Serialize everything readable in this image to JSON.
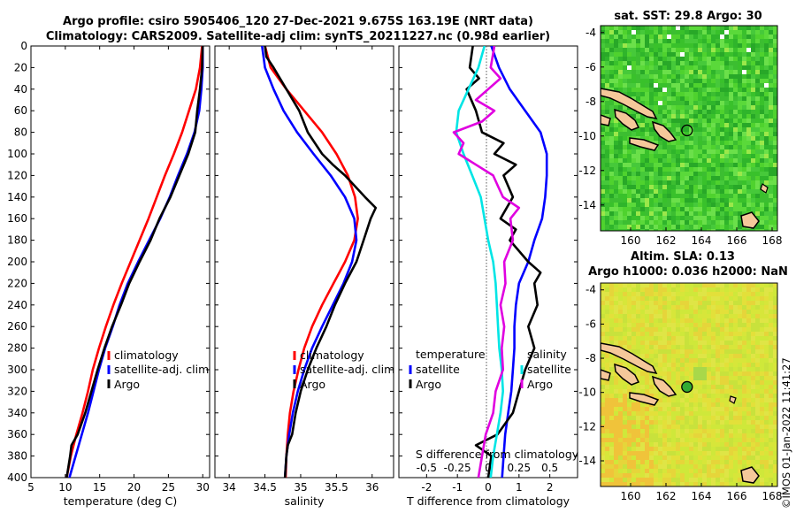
{
  "title_line1": "Argo profile: csiro 5905406_120 27-Dec-2021 9.675S 163.19E (NRT data)",
  "title_line2": "Climatology: CARS2009. Satellite-adj clim: synTS_20211227.nc (0.98d earlier)",
  "footer_vertical": "©IMOS 01-Jan-2022 11:41:27",
  "colors": {
    "climatology": "#ff0000",
    "satellite": "#0000ff",
    "argo": "#000000",
    "temp_diff": "#00e5e5",
    "sal_diff": "#e000e0"
  },
  "chart_data": [
    {
      "type": "line",
      "name": "temperature-profile",
      "xlabel": "temperature (deg C)",
      "ylabel": "",
      "xlim": [
        5,
        31
      ],
      "ylim": [
        400,
        0
      ],
      "xticks": [
        5,
        10,
        15,
        20,
        25,
        30
      ],
      "yticks": [
        0,
        20,
        40,
        60,
        80,
        100,
        120,
        140,
        160,
        180,
        200,
        220,
        240,
        260,
        280,
        300,
        320,
        340,
        360,
        380,
        400
      ],
      "legend": [
        "climatology",
        "satellite-adj. clim",
        "Argo"
      ],
      "series": [
        {
          "name": "climatology",
          "color": "#ff0000",
          "depth": [
            0,
            20,
            40,
            60,
            80,
            100,
            120,
            140,
            160,
            180,
            200,
            220,
            240,
            260,
            280,
            300,
            320,
            340,
            360,
            380,
            400
          ],
          "values": [
            29.9,
            29.6,
            29.0,
            28.0,
            27.0,
            25.8,
            24.5,
            23.3,
            22.1,
            20.8,
            19.5,
            18.2,
            17.0,
            15.9,
            14.9,
            14.0,
            13.3,
            12.5,
            11.6,
            10.8,
            10.2
          ]
        },
        {
          "name": "satellite-adj. clim",
          "color": "#0000ff",
          "depth": [
            0,
            20,
            40,
            60,
            80,
            100,
            120,
            140,
            160,
            180,
            200,
            220,
            240,
            260,
            280,
            300,
            320,
            340,
            360,
            380,
            400
          ],
          "values": [
            30.0,
            30.0,
            29.8,
            29.5,
            28.8,
            27.7,
            26.4,
            25.2,
            23.8,
            22.2,
            20.6,
            19.1,
            17.9,
            16.9,
            15.8,
            14.9,
            14.1,
            13.3,
            12.4,
            11.5,
            10.6
          ]
        },
        {
          "name": "Argo",
          "color": "#000000",
          "depth": [
            0,
            20,
            40,
            60,
            80,
            100,
            120,
            140,
            150,
            160,
            180,
            200,
            220,
            240,
            260,
            280,
            300,
            320,
            340,
            360,
            370,
            380,
            400
          ],
          "values": [
            30.0,
            29.9,
            29.6,
            29.2,
            28.9,
            27.9,
            26.6,
            25.3,
            24.5,
            23.7,
            22.4,
            20.8,
            19.3,
            18.1,
            16.8,
            15.7,
            14.7,
            13.8,
            12.9,
            11.8,
            10.9,
            10.7,
            10.2
          ]
        }
      ]
    },
    {
      "type": "line",
      "name": "salinity-profile",
      "xlabel": "salinity",
      "ylabel": "",
      "xlim": [
        33.8,
        36.3
      ],
      "ylim": [
        400,
        0
      ],
      "xticks": [
        34,
        34.5,
        35,
        35.5,
        36
      ],
      "legend": [
        "climatology",
        "satellite-adj. clim",
        "Argo"
      ],
      "series": [
        {
          "name": "climatology",
          "color": "#ff0000",
          "depth": [
            0,
            20,
            40,
            60,
            80,
            100,
            120,
            140,
            160,
            180,
            200,
            220,
            240,
            260,
            280,
            300,
            320,
            340,
            360,
            380,
            400
          ],
          "values": [
            34.5,
            34.58,
            34.8,
            35.05,
            35.3,
            35.5,
            35.66,
            35.76,
            35.8,
            35.75,
            35.62,
            35.46,
            35.3,
            35.16,
            35.05,
            34.97,
            34.9,
            34.85,
            34.82,
            34.8,
            34.79
          ]
        },
        {
          "name": "satellite-adj. clim",
          "color": "#0000ff",
          "depth": [
            0,
            20,
            40,
            60,
            80,
            100,
            120,
            140,
            160,
            180,
            200,
            220,
            240,
            260,
            280,
            300,
            320,
            340,
            360,
            380,
            400
          ],
          "values": [
            34.46,
            34.5,
            34.62,
            34.76,
            34.95,
            35.18,
            35.42,
            35.62,
            35.75,
            35.78,
            35.72,
            35.6,
            35.45,
            35.3,
            35.16,
            35.05,
            34.96,
            34.89,
            34.84,
            34.8,
            34.78
          ]
        },
        {
          "name": "Argo",
          "color": "#000000",
          "depth": [
            0,
            10,
            20,
            40,
            60,
            80,
            100,
            110,
            120,
            140,
            150,
            160,
            180,
            200,
            220,
            240,
            260,
            280,
            300,
            320,
            340,
            360,
            370,
            380,
            400
          ],
          "values": [
            34.5,
            34.52,
            34.62,
            34.8,
            34.98,
            35.1,
            35.3,
            35.45,
            35.62,
            35.9,
            36.05,
            35.98,
            35.88,
            35.78,
            35.62,
            35.48,
            35.36,
            35.22,
            35.1,
            35.0,
            34.93,
            34.88,
            34.82,
            34.8,
            34.78
          ]
        }
      ]
    },
    {
      "type": "line",
      "name": "difference-profile",
      "xlabel": "T difference from climatology",
      "xlabel_top": "S difference from climatology",
      "xlim": [
        -2.9,
        2.9
      ],
      "ylim": [
        400,
        0
      ],
      "xticks": [
        -2,
        -1,
        0,
        1,
        2
      ],
      "s_tick_labels": [
        "-0.5",
        "-0.25",
        "0",
        "0.25",
        "0.5"
      ],
      "legend_left_title": "temperature",
      "legend_right_title": "salinity",
      "legend": [
        "satellite",
        "Argo"
      ],
      "series": [
        {
          "name": "T satellite",
          "color": "#0000ff",
          "depth": [
            0,
            20,
            40,
            60,
            80,
            100,
            120,
            140,
            160,
            180,
            200,
            220,
            240,
            260,
            280,
            300,
            320,
            340,
            360,
            380,
            400
          ],
          "values": [
            0.1,
            0.35,
            0.7,
            1.2,
            1.7,
            1.9,
            1.9,
            1.85,
            1.75,
            1.5,
            1.3,
            1.0,
            0.9,
            0.85,
            0.85,
            0.8,
            0.75,
            0.65,
            0.55,
            0.5,
            0.45
          ]
        },
        {
          "name": "T Argo",
          "color": "#000000",
          "depth": [
            0,
            20,
            30,
            40,
            60,
            80,
            90,
            100,
            110,
            120,
            140,
            150,
            160,
            170,
            180,
            200,
            210,
            220,
            240,
            260,
            280,
            300,
            320,
            340,
            360,
            370,
            380,
            400
          ],
          "values": [
            -0.5,
            -0.6,
            -0.3,
            -0.7,
            -0.4,
            -0.2,
            0.5,
            0.2,
            0.9,
            0.5,
            0.8,
            0.6,
            0.4,
            0.9,
            0.7,
            1.3,
            1.7,
            1.5,
            1.6,
            1.3,
            1.5,
            1.2,
            1.0,
            0.8,
            0.3,
            -0.4,
            0.1,
            0.0
          ]
        },
        {
          "name": "S satellite",
          "color": "#00e5e5",
          "depth": [
            0,
            20,
            40,
            60,
            80,
            100,
            120,
            140,
            160,
            180,
            200,
            220,
            240,
            260,
            280,
            300,
            320,
            340,
            360,
            380,
            400
          ],
          "values": [
            -0.03,
            -0.08,
            -0.16,
            -0.24,
            -0.26,
            -0.2,
            -0.13,
            -0.06,
            -0.03,
            0.0,
            0.04,
            0.06,
            0.07,
            0.08,
            0.09,
            0.11,
            0.12,
            0.1,
            0.07,
            0.04,
            0.02
          ]
        },
        {
          "name": "S Argo",
          "color": "#e000e0",
          "depth": [
            0,
            20,
            30,
            40,
            50,
            60,
            70,
            80,
            90,
            100,
            110,
            120,
            130,
            140,
            150,
            160,
            180,
            200,
            220,
            240,
            260,
            280,
            300,
            320,
            340,
            360,
            380,
            400
          ],
          "values": [
            0.05,
            0.02,
            0.1,
            0.0,
            -0.1,
            0.05,
            -0.05,
            -0.28,
            -0.2,
            -0.24,
            -0.1,
            0.04,
            0.08,
            0.12,
            0.25,
            0.18,
            0.2,
            0.13,
            0.14,
            0.1,
            0.13,
            0.11,
            0.12,
            0.06,
            0.04,
            -0.02,
            -0.05,
            -0.08
          ]
        }
      ]
    },
    {
      "type": "heatmap",
      "name": "sst-map",
      "title": "sat. SST: 29.8 Argo: 30",
      "xlim": [
        158.3,
        168.3
      ],
      "ylim": [
        -15.5,
        -3.6
      ],
      "xticks": [
        160,
        162,
        164,
        166,
        168
      ],
      "yticks": [
        -4,
        -6,
        -8,
        -10,
        -12,
        -14
      ],
      "profile_location": {
        "lon": 163.19,
        "lat": -9.675
      }
    },
    {
      "type": "heatmap",
      "name": "sla-map",
      "title_line1": "Altim. SLA: 0.13",
      "title_line2": "Argo h1000: 0.036 h2000: NaN",
      "xlim": [
        158.3,
        168.3
      ],
      "ylim": [
        -15.5,
        -3.6
      ],
      "xticks": [
        160,
        162,
        164,
        166,
        168
      ],
      "yticks": [
        -4,
        -6,
        -8,
        -10,
        -12,
        -14
      ],
      "profile_location": {
        "lon": 163.19,
        "lat": -9.675
      }
    }
  ]
}
